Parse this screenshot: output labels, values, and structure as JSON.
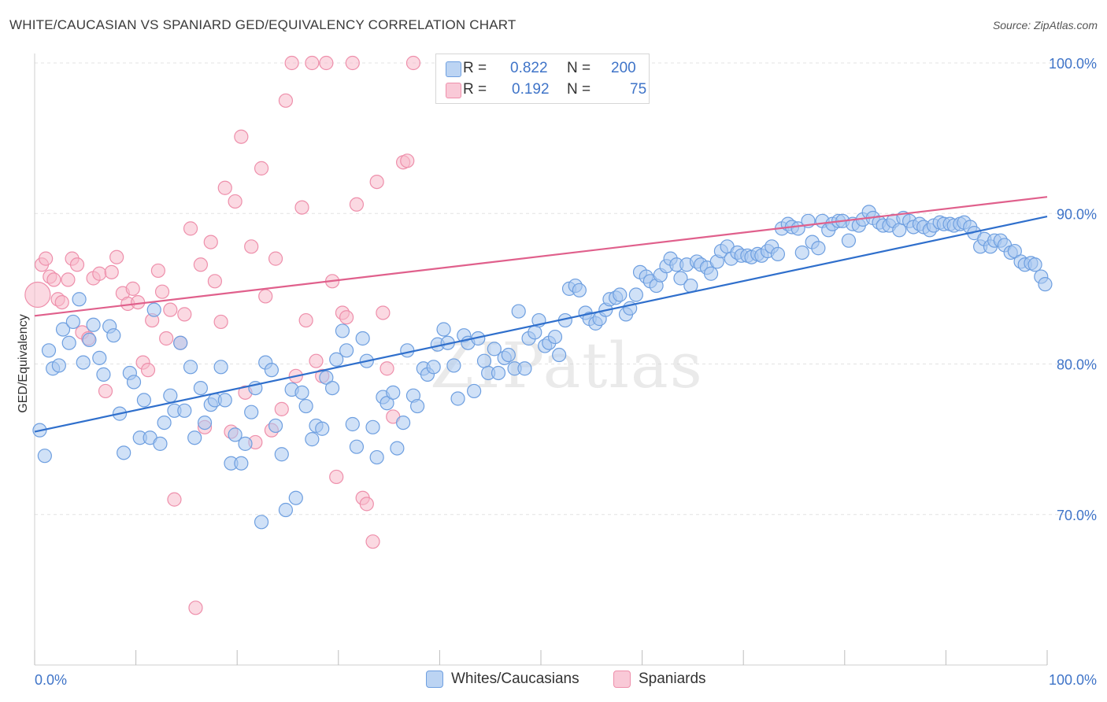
{
  "title": "WHITE/CAUCASIAN VS SPANIARD GED/EQUIVALENCY CORRELATION CHART",
  "source": "Source: ZipAtlas.com",
  "watermark": "ZIPatlas",
  "legend": {
    "rows": [
      {
        "r_label": "R =",
        "r_value": "0.822",
        "n_label": "N =",
        "n_value": "200"
      },
      {
        "r_label": "R =",
        "r_value": "0.192",
        "n_label": "N =",
        "n_value": "75"
      }
    ]
  },
  "colors": {
    "white_fill": "#a9c8f0",
    "white_stroke": "#6e9fe0",
    "white_line": "#2f6fcc",
    "spaniard_fill": "#f7b9cb",
    "spaniard_stroke": "#ee8fab",
    "spaniard_line": "#e0608c",
    "tick_label": "#3f74c8"
  },
  "chart_data": {
    "type": "scatter",
    "ylabel": "GED/Equivalency",
    "xlabel": "",
    "x_tick_labels": [
      "0.0%",
      "100.0%"
    ],
    "y_tick_labels": [
      "70.0%",
      "80.0%",
      "90.0%",
      "100.0%"
    ],
    "xlim": [
      0,
      100
    ],
    "ylim": [
      60,
      100
    ],
    "grid": true,
    "legend_placement": "bottom-center",
    "series": [
      {
        "name": "Whites/Caucasians",
        "trend": {
          "x": [
            0,
            100
          ],
          "y": [
            75.5,
            89.8
          ]
        },
        "points": [
          [
            0.5,
            75.6
          ],
          [
            1,
            73.9
          ],
          [
            1.4,
            80.9
          ],
          [
            1.8,
            79.7
          ],
          [
            2.4,
            79.9
          ],
          [
            2.8,
            82.3
          ],
          [
            3.4,
            81.4
          ],
          [
            3.8,
            82.8
          ],
          [
            4.4,
            84.3
          ],
          [
            4.8,
            80.1
          ],
          [
            5.4,
            81.6
          ],
          [
            5.8,
            82.6
          ],
          [
            6.4,
            80.4
          ],
          [
            6.8,
            79.3
          ],
          [
            7.4,
            82.5
          ],
          [
            7.8,
            81.9
          ],
          [
            8.4,
            76.7
          ],
          [
            8.8,
            74.1
          ],
          [
            9.4,
            79.4
          ],
          [
            9.8,
            78.8
          ],
          [
            10.4,
            75.1
          ],
          [
            10.8,
            77.6
          ],
          [
            11.4,
            75.1
          ],
          [
            11.8,
            83.6
          ],
          [
            12.4,
            74.7
          ],
          [
            12.8,
            76.1
          ],
          [
            13.4,
            77.9
          ],
          [
            13.8,
            76.9
          ],
          [
            14.4,
            81.4
          ],
          [
            14.8,
            76.9
          ],
          [
            15.4,
            79.8
          ],
          [
            15.8,
            75.1
          ],
          [
            16.4,
            78.4
          ],
          [
            16.8,
            76.1
          ],
          [
            17.4,
            77.3
          ],
          [
            17.8,
            77.6
          ],
          [
            18.4,
            79.8
          ],
          [
            18.8,
            77.6
          ],
          [
            19.4,
            73.4
          ],
          [
            19.8,
            75.3
          ],
          [
            20.4,
            73.4
          ],
          [
            20.8,
            74.7
          ],
          [
            21.4,
            76.8
          ],
          [
            21.8,
            78.4
          ],
          [
            22.4,
            69.5
          ],
          [
            22.8,
            80.1
          ],
          [
            23.4,
            79.6
          ],
          [
            23.8,
            75.9
          ],
          [
            24.4,
            74.0
          ],
          [
            24.8,
            70.3
          ],
          [
            25.4,
            78.3
          ],
          [
            25.8,
            71.1
          ],
          [
            26.4,
            78.1
          ],
          [
            26.8,
            77.2
          ],
          [
            27.4,
            75.0
          ],
          [
            27.8,
            75.9
          ],
          [
            28.4,
            75.7
          ],
          [
            28.8,
            79.1
          ],
          [
            29.4,
            78.4
          ],
          [
            29.8,
            80.3
          ],
          [
            30.4,
            82.2
          ],
          [
            30.8,
            80.9
          ],
          [
            31.4,
            76.0
          ],
          [
            31.8,
            74.5
          ],
          [
            32.4,
            81.7
          ],
          [
            32.8,
            80.2
          ],
          [
            33.4,
            75.8
          ],
          [
            33.8,
            73.8
          ],
          [
            34.4,
            77.8
          ],
          [
            34.8,
            77.4
          ],
          [
            35.4,
            78.1
          ],
          [
            35.8,
            74.4
          ],
          [
            36.4,
            76.1
          ],
          [
            36.8,
            80.9
          ],
          [
            37.4,
            77.9
          ],
          [
            37.8,
            77.2
          ],
          [
            38.4,
            79.7
          ],
          [
            38.8,
            79.3
          ],
          [
            39.4,
            79.8
          ],
          [
            39.8,
            81.3
          ],
          [
            40.4,
            82.3
          ],
          [
            40.8,
            81.4
          ],
          [
            41.4,
            79.9
          ],
          [
            41.8,
            77.7
          ],
          [
            42.4,
            81.9
          ],
          [
            42.8,
            81.4
          ],
          [
            43.4,
            78.2
          ],
          [
            43.8,
            81.7
          ],
          [
            44.4,
            80.2
          ],
          [
            44.8,
            79.4
          ],
          [
            45.4,
            81.0
          ],
          [
            45.8,
            79.4
          ],
          [
            46.4,
            80.4
          ],
          [
            46.8,
            80.6
          ],
          [
            47.4,
            79.7
          ],
          [
            47.8,
            83.5
          ],
          [
            48.4,
            79.7
          ],
          [
            48.8,
            81.7
          ],
          [
            49.4,
            82.1
          ],
          [
            49.8,
            82.9
          ],
          [
            50.4,
            81.2
          ],
          [
            50.8,
            81.4
          ],
          [
            51.4,
            81.8
          ],
          [
            51.8,
            80.6
          ],
          [
            52.4,
            82.9
          ],
          [
            52.8,
            85.0
          ],
          [
            53.4,
            85.2
          ],
          [
            53.8,
            84.9
          ],
          [
            54.4,
            83.4
          ],
          [
            54.8,
            83.0
          ],
          [
            55.4,
            82.7
          ],
          [
            55.8,
            83.0
          ],
          [
            56.4,
            83.6
          ],
          [
            56.8,
            84.3
          ],
          [
            57.4,
            84.4
          ],
          [
            57.8,
            84.6
          ],
          [
            58.4,
            83.3
          ],
          [
            58.8,
            83.7
          ],
          [
            59.4,
            84.6
          ],
          [
            59.8,
            86.1
          ],
          [
            60.4,
            85.8
          ],
          [
            60.8,
            85.5
          ],
          [
            61.4,
            85.2
          ],
          [
            61.8,
            85.9
          ],
          [
            62.4,
            86.5
          ],
          [
            62.8,
            87.0
          ],
          [
            63.4,
            86.6
          ],
          [
            63.8,
            85.7
          ],
          [
            64.4,
            86.6
          ],
          [
            64.8,
            85.2
          ],
          [
            65.4,
            86.8
          ],
          [
            65.8,
            86.6
          ],
          [
            66.4,
            86.4
          ],
          [
            66.8,
            86.0
          ],
          [
            67.4,
            86.8
          ],
          [
            67.8,
            87.5
          ],
          [
            68.4,
            87.8
          ],
          [
            68.8,
            87.0
          ],
          [
            69.4,
            87.4
          ],
          [
            69.8,
            87.2
          ],
          [
            70.4,
            87.2
          ],
          [
            70.8,
            87.1
          ],
          [
            71.4,
            87.3
          ],
          [
            71.8,
            87.2
          ],
          [
            72.4,
            87.5
          ],
          [
            72.8,
            87.8
          ],
          [
            73.4,
            87.3
          ],
          [
            73.8,
            89.0
          ],
          [
            74.4,
            89.3
          ],
          [
            74.8,
            89.1
          ],
          [
            75.4,
            89.0
          ],
          [
            75.8,
            87.4
          ],
          [
            76.4,
            89.5
          ],
          [
            76.8,
            88.1
          ],
          [
            77.4,
            87.7
          ],
          [
            77.8,
            89.5
          ],
          [
            78.4,
            88.9
          ],
          [
            78.8,
            89.3
          ],
          [
            79.4,
            89.5
          ],
          [
            79.8,
            89.5
          ],
          [
            80.4,
            88.2
          ],
          [
            80.8,
            89.3
          ],
          [
            81.4,
            89.2
          ],
          [
            81.8,
            89.6
          ],
          [
            82.4,
            90.1
          ],
          [
            82.8,
            89.7
          ],
          [
            83.4,
            89.4
          ],
          [
            83.8,
            89.2
          ],
          [
            84.4,
            89.2
          ],
          [
            84.8,
            89.5
          ],
          [
            85.4,
            88.9
          ],
          [
            85.8,
            89.7
          ],
          [
            86.4,
            89.5
          ],
          [
            86.8,
            89.1
          ],
          [
            87.4,
            89.3
          ],
          [
            87.8,
            89.1
          ],
          [
            88.4,
            88.9
          ],
          [
            88.8,
            89.2
          ],
          [
            89.4,
            89.4
          ],
          [
            89.8,
            89.3
          ],
          [
            90.4,
            89.3
          ],
          [
            90.8,
            89.2
          ],
          [
            91.4,
            89.3
          ],
          [
            91.8,
            89.4
          ],
          [
            92.4,
            89.1
          ],
          [
            92.8,
            88.7
          ],
          [
            93.4,
            87.8
          ],
          [
            93.8,
            88.3
          ],
          [
            94.4,
            87.8
          ],
          [
            94.8,
            88.2
          ],
          [
            95.4,
            88.2
          ],
          [
            95.8,
            87.9
          ],
          [
            96.4,
            87.4
          ],
          [
            96.8,
            87.5
          ],
          [
            97.4,
            86.8
          ],
          [
            97.8,
            86.6
          ],
          [
            98.4,
            86.7
          ],
          [
            98.8,
            86.6
          ],
          [
            99.4,
            85.8
          ],
          [
            99.8,
            85.3
          ]
        ]
      },
      {
        "name": "Spaniards",
        "trend": {
          "x": [
            0,
            100
          ],
          "y": [
            83.2,
            91.1
          ]
        },
        "points": [
          [
            0.3,
            84.6
          ],
          [
            0.7,
            86.6
          ],
          [
            1.1,
            87.0
          ],
          [
            1.5,
            85.8
          ],
          [
            1.9,
            85.6
          ],
          [
            2.3,
            84.3
          ],
          [
            2.7,
            84.1
          ],
          [
            3.3,
            85.6
          ],
          [
            3.7,
            87.0
          ],
          [
            4.2,
            86.6
          ],
          [
            4.7,
            82.1
          ],
          [
            5.3,
            81.7
          ],
          [
            5.8,
            85.7
          ],
          [
            6.4,
            86.0
          ],
          [
            7.0,
            78.2
          ],
          [
            7.6,
            86.1
          ],
          [
            8.1,
            87.1
          ],
          [
            8.7,
            84.7
          ],
          [
            9.2,
            84.0
          ],
          [
            9.7,
            85.0
          ],
          [
            10.2,
            84.1
          ],
          [
            10.7,
            80.1
          ],
          [
            11.2,
            79.6
          ],
          [
            11.6,
            82.9
          ],
          [
            12.2,
            86.2
          ],
          [
            12.6,
            84.8
          ],
          [
            13.0,
            81.7
          ],
          [
            13.4,
            83.6
          ],
          [
            13.8,
            71.0
          ],
          [
            14.4,
            81.4
          ],
          [
            14.8,
            83.3
          ],
          [
            15.4,
            89.0
          ],
          [
            15.9,
            63.8
          ],
          [
            16.4,
            86.6
          ],
          [
            16.8,
            75.8
          ],
          [
            17.4,
            88.1
          ],
          [
            17.8,
            85.5
          ],
          [
            18.4,
            82.8
          ],
          [
            18.8,
            91.7
          ],
          [
            19.4,
            75.5
          ],
          [
            19.8,
            90.8
          ],
          [
            20.4,
            95.1
          ],
          [
            20.8,
            78.1
          ],
          [
            21.4,
            87.8
          ],
          [
            21.8,
            74.8
          ],
          [
            22.4,
            93.0
          ],
          [
            22.8,
            84.5
          ],
          [
            23.4,
            75.6
          ],
          [
            23.8,
            87.0
          ],
          [
            24.4,
            77.0
          ],
          [
            24.8,
            97.5
          ],
          [
            25.4,
            100.0
          ],
          [
            25.8,
            79.2
          ],
          [
            26.4,
            90.4
          ],
          [
            26.8,
            82.9
          ],
          [
            27.4,
            100.0
          ],
          [
            27.8,
            80.2
          ],
          [
            28.4,
            79.2
          ],
          [
            28.8,
            100.0
          ],
          [
            29.4,
            85.5
          ],
          [
            29.8,
            72.5
          ],
          [
            30.4,
            83.4
          ],
          [
            30.8,
            83.1
          ],
          [
            31.4,
            100.0
          ],
          [
            31.8,
            90.6
          ],
          [
            32.4,
            71.1
          ],
          [
            32.8,
            70.7
          ],
          [
            33.4,
            68.2
          ],
          [
            33.8,
            92.1
          ],
          [
            34.4,
            83.4
          ],
          [
            34.8,
            79.7
          ],
          [
            35.4,
            76.5
          ],
          [
            36.4,
            93.4
          ],
          [
            36.8,
            93.5
          ],
          [
            37.4,
            100.0
          ]
        ]
      }
    ]
  },
  "bottom_legend": {
    "series1": "Whites/Caucasians",
    "series2": "Spaniards"
  }
}
